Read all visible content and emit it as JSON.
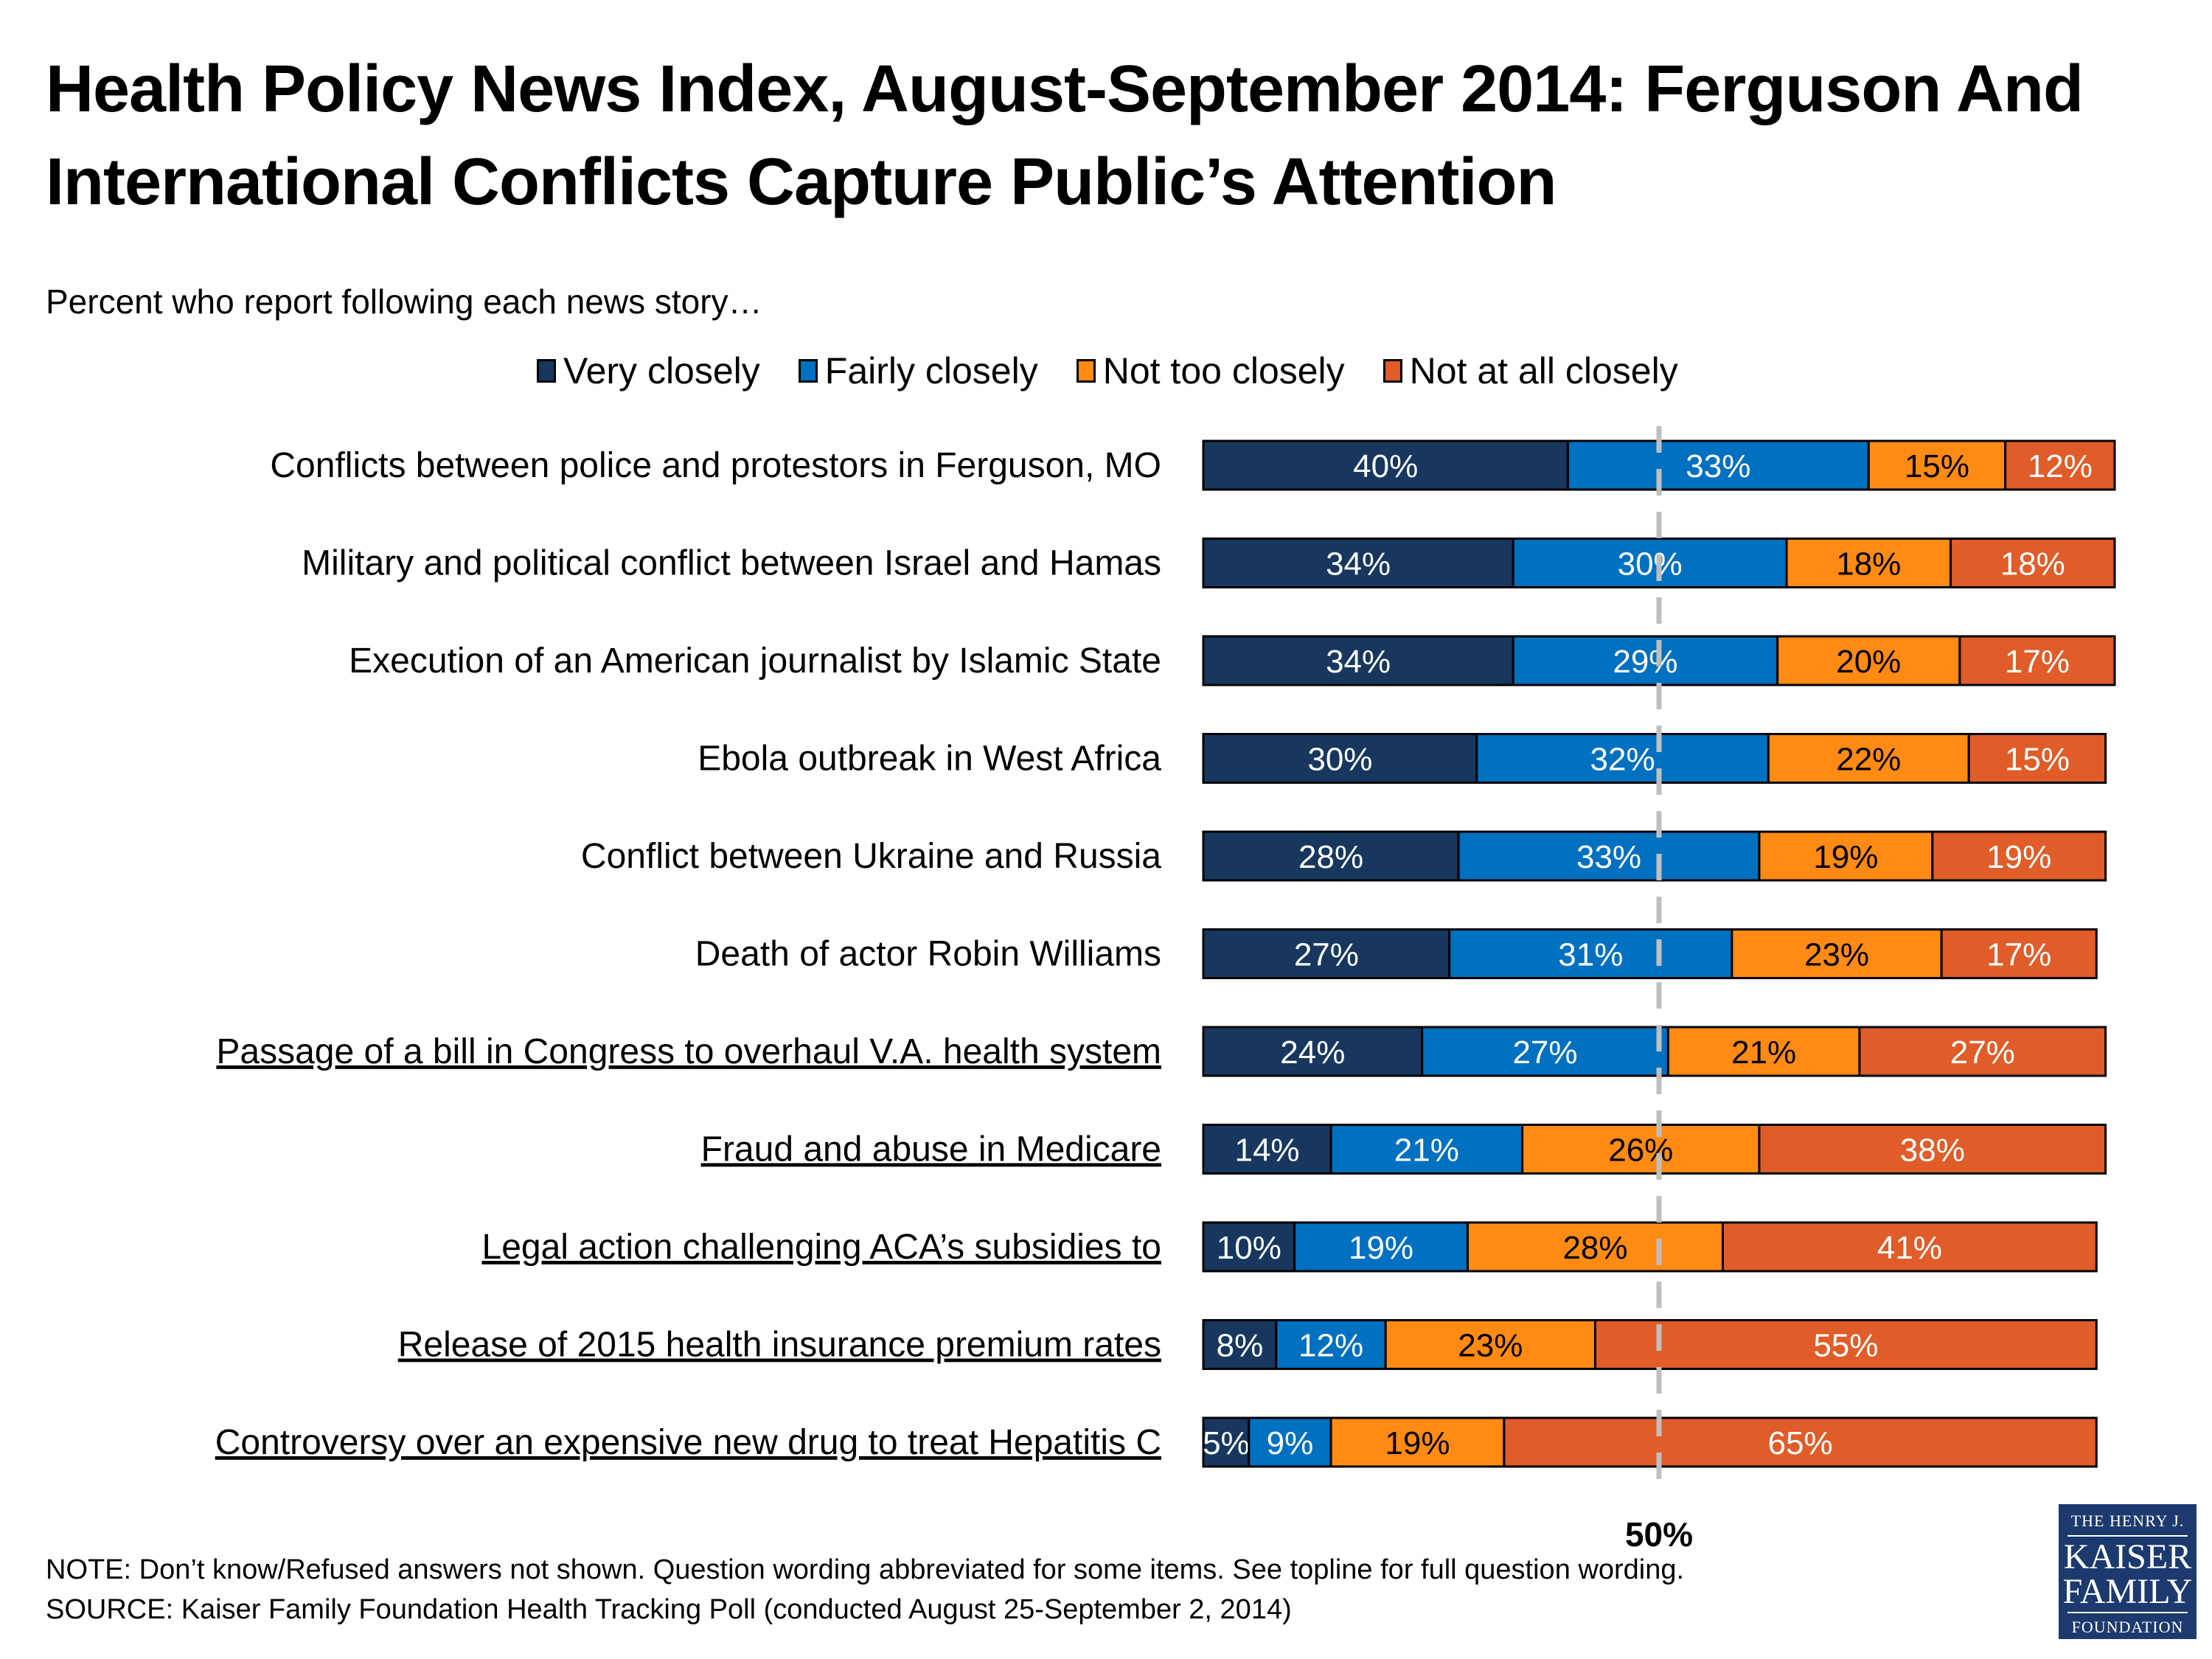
{
  "chart_data": {
    "type": "bar",
    "orientation": "horizontal",
    "stacked": true,
    "title": "Health Policy News Index, August-September 2014: Ferguson And International Conflicts Capture Public’s Attention",
    "subtitle": "Percent who report following each news story…",
    "xlabel": "",
    "ylabel": "",
    "xlim": [
      0,
      100
    ],
    "reference_line": {
      "value": 50,
      "label": "50%",
      "style": "dashed"
    },
    "legend_position": "top",
    "categories": [
      "Conflicts between police and protestors in Ferguson, MO",
      "Military and political conflict between Israel and Hamas",
      "Execution of an American journalist by Islamic State",
      "Ebola outbreak in West Africa",
      "Conflict between Ukraine and Russia",
      "Death of actor Robin Williams",
      "Passage of a bill in Congress to overhaul V.A. health system",
      "Fraud and abuse in Medicare",
      "Legal action challenging ACA’s subsidies to",
      "Release of 2015 health insurance premium rates",
      "Controversy over an expensive new drug to treat Hepatitis C"
    ],
    "underlined": [
      false,
      false,
      false,
      false,
      false,
      false,
      true,
      true,
      true,
      true,
      true
    ],
    "series": [
      {
        "name": "Very closely",
        "color": "#17375e",
        "label_color": "#ffffff",
        "values": [
          40,
          34,
          34,
          30,
          28,
          27,
          24,
          14,
          10,
          8,
          5
        ]
      },
      {
        "name": "Fairly closely",
        "color": "#0070c0",
        "label_color": "#ffffff",
        "values": [
          33,
          30,
          29,
          32,
          33,
          31,
          27,
          21,
          19,
          12,
          9
        ]
      },
      {
        "name": "Not too closely",
        "color": "#ff8a14",
        "label_color": "#000000",
        "values": [
          15,
          18,
          20,
          22,
          19,
          23,
          21,
          26,
          28,
          23,
          19
        ]
      },
      {
        "name": "Not at all closely",
        "color": "#e05c28",
        "label_color": "#ffffff",
        "values": [
          12,
          18,
          17,
          15,
          19,
          17,
          27,
          38,
          41,
          55,
          65
        ]
      }
    ]
  },
  "footer": {
    "note": "NOTE: Don’t know/Refused answers not shown. Question wording abbreviated for some items. See topline for full question wording.",
    "source": "SOURCE: Kaiser Family Foundation Health Tracking Poll (conducted August 25-September 2, 2014)"
  },
  "logo": {
    "line1": "THE HENRY J.",
    "line2": "KAISER",
    "line3": "FAMILY",
    "line4": "FOUNDATION"
  }
}
